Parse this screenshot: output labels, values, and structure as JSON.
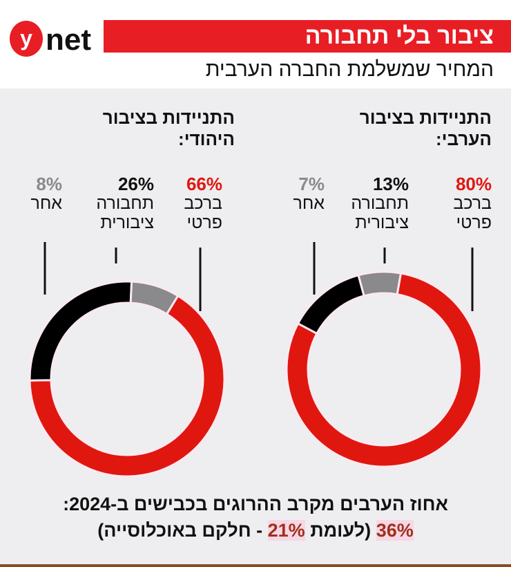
{
  "header": {
    "logo": "ynet",
    "title": "ציבור בלי תחבורה",
    "subtitle": "המחיר שמשלמת החברה הערבית"
  },
  "colors": {
    "red": "#e0170f",
    "black": "#000000",
    "gray": "#8a898b",
    "accent": "#e81e25"
  },
  "chart_data": [
    {
      "type": "pie",
      "title": "התניידות בציבור הערבי:",
      "categories": [
        "ברכב פרטי",
        "תחבורה ציבורית",
        "אחר"
      ],
      "values": [
        80,
        13,
        7
      ],
      "labels": [
        "80%",
        "13%",
        "7%"
      ]
    },
    {
      "type": "pie",
      "title": "התניידות בציבור היהודי:",
      "categories": [
        "ברכב פרטי",
        "תחבורה ציבורית",
        "אחר"
      ],
      "values": [
        66,
        26,
        8
      ],
      "labels": [
        "66%",
        "26%",
        "8%"
      ]
    }
  ],
  "footer": {
    "line1": "אחוז הערבים מקרב ההרוגים בכבישים ב-2024:",
    "value": "36%",
    "mid": "(לעומת",
    "compare": "21%",
    "end": "- חלקם באוכלוסייה)"
  }
}
